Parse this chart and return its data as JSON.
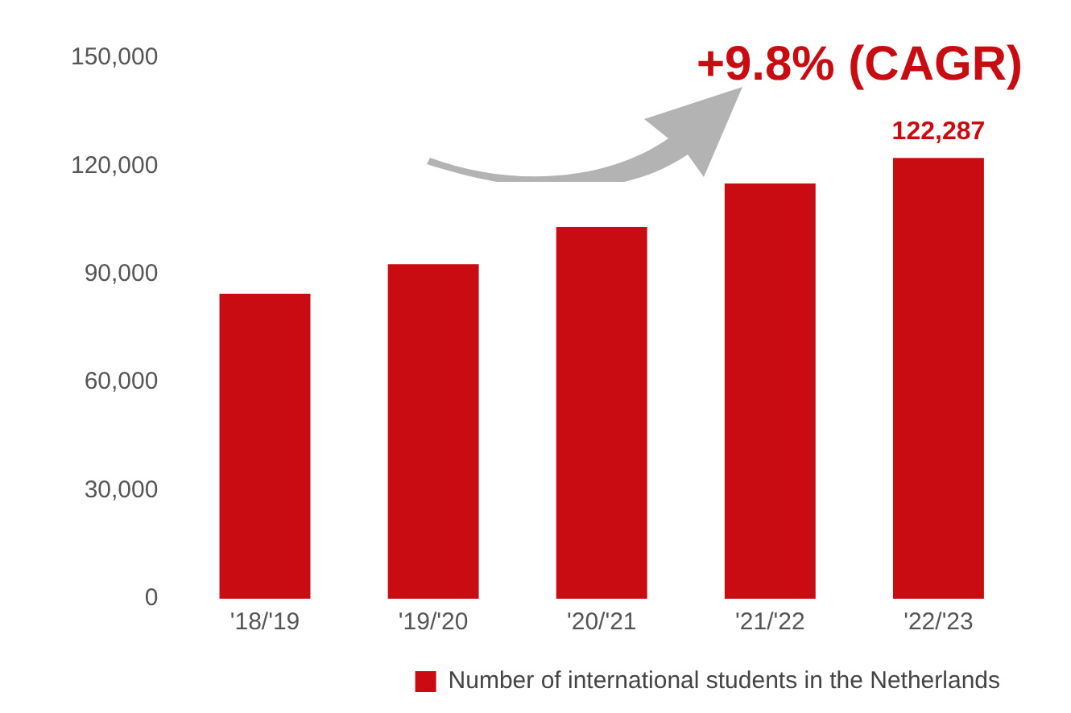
{
  "chart_data": {
    "type": "bar",
    "categories": [
      "'18/'19",
      "'19/'20",
      "'20/'21",
      "'21/'22",
      "'22/'23"
    ],
    "series": [
      {
        "name": "Number of international students in the Netherlands",
        "color": "#c80c12",
        "values": [
          84600,
          92800,
          103100,
          115200,
          122287
        ],
        "value_labels": [
          null,
          null,
          null,
          null,
          "122,287"
        ]
      }
    ],
    "ylim": [
      0,
      150000
    ],
    "yticks": [
      {
        "value": 0,
        "label": "0"
      },
      {
        "value": 30000,
        "label": "30,000"
      },
      {
        "value": 60000,
        "label": "60,000"
      },
      {
        "value": 90000,
        "label": "90,000"
      },
      {
        "value": 120000,
        "label": "120,000"
      },
      {
        "value": 150000,
        "label": "150,000"
      }
    ],
    "grid": false,
    "legend": "bottom",
    "annotations": [
      "+9.8% (CAGR)"
    ]
  }
}
